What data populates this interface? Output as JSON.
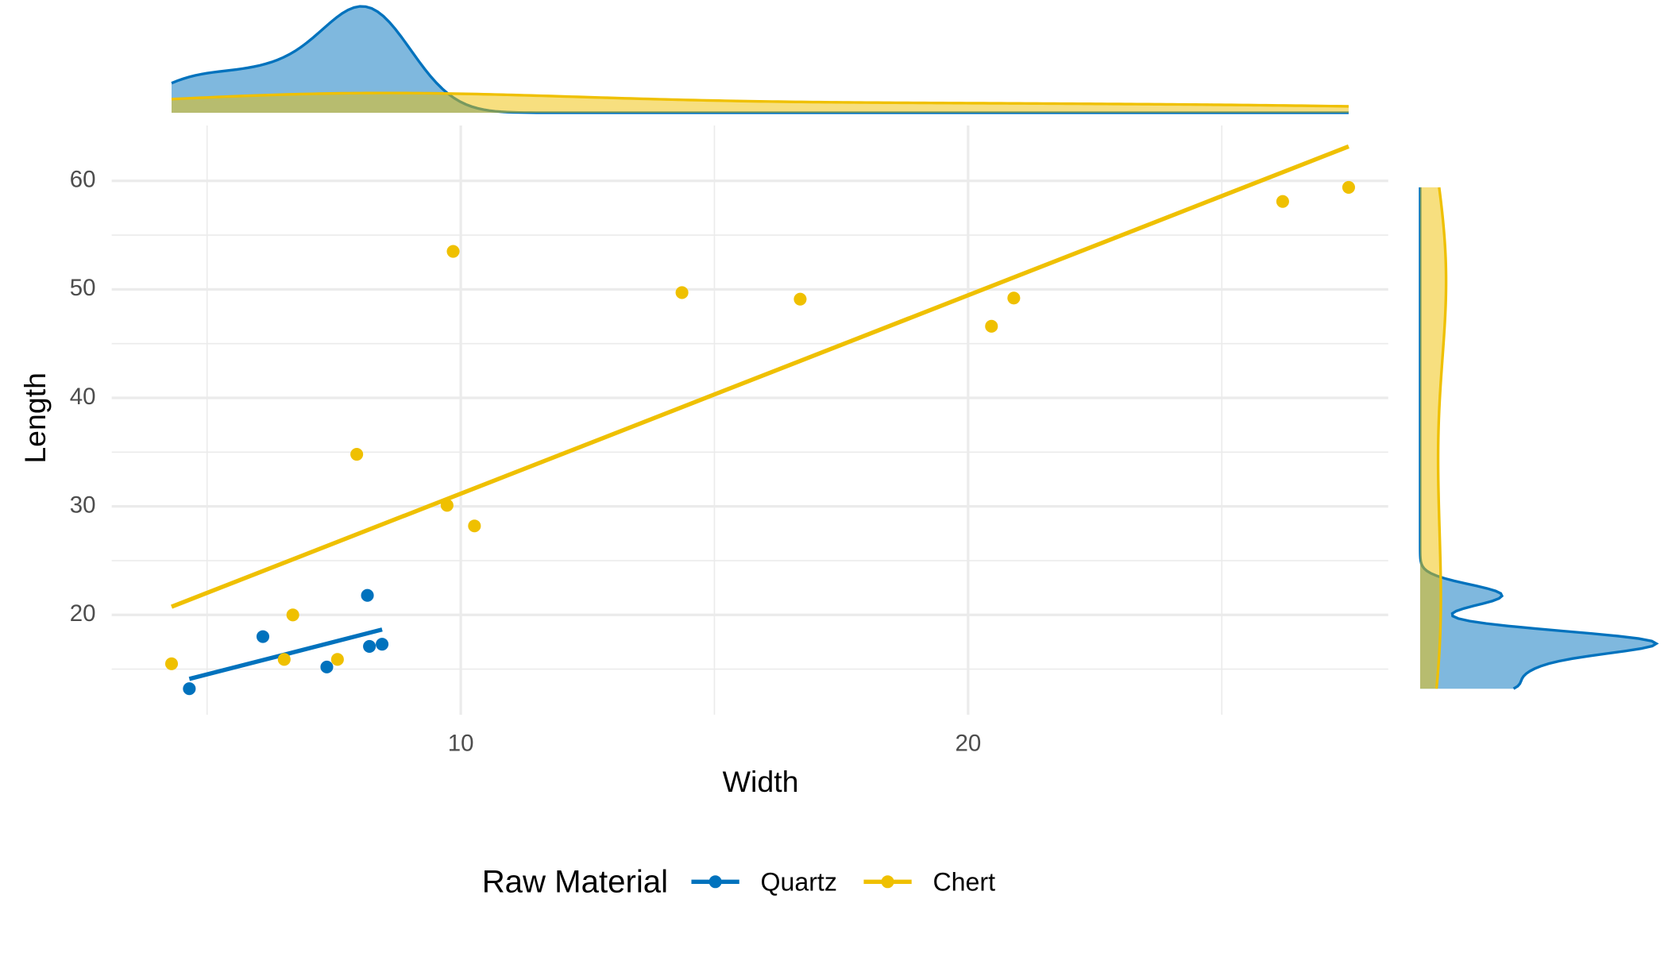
{
  "chart_data": {
    "type": "scatter",
    "x_label": "Width",
    "y_label": "Length",
    "legend_title": "Raw Material",
    "legend_position": "bottom",
    "series": [
      {
        "name": "Quartz",
        "color": "#0072BD",
        "x": [
          4.65,
          6.1,
          7.36,
          8.16,
          8.2,
          8.45
        ],
        "values": [
          13.2,
          18.0,
          15.2,
          21.8,
          17.1,
          17.3
        ]
      },
      {
        "name": "Chert",
        "color": "#EFC000",
        "x": [
          4.3,
          6.52,
          6.69,
          7.57,
          7.95,
          9.73,
          9.85,
          10.27,
          14.36,
          16.69,
          20.46,
          20.9,
          26.2,
          27.5
        ],
        "values": [
          15.5,
          15.9,
          20.0,
          15.9,
          34.8,
          30.1,
          53.5,
          28.2,
          49.7,
          49.1,
          46.6,
          49.2,
          58.1,
          59.4
        ]
      }
    ],
    "xlim": [
      3.12,
      28.28
    ],
    "ylim": [
      10.8,
      65.1
    ],
    "xticks": [
      10,
      20
    ],
    "yticks": [
      20,
      30,
      40,
      50,
      60
    ],
    "x_minor_grid": [
      5,
      15,
      25
    ],
    "y_minor_grid": [
      15,
      25,
      35,
      45,
      55
    ],
    "grid": true,
    "trend_lines": true,
    "marginal_density": true
  }
}
